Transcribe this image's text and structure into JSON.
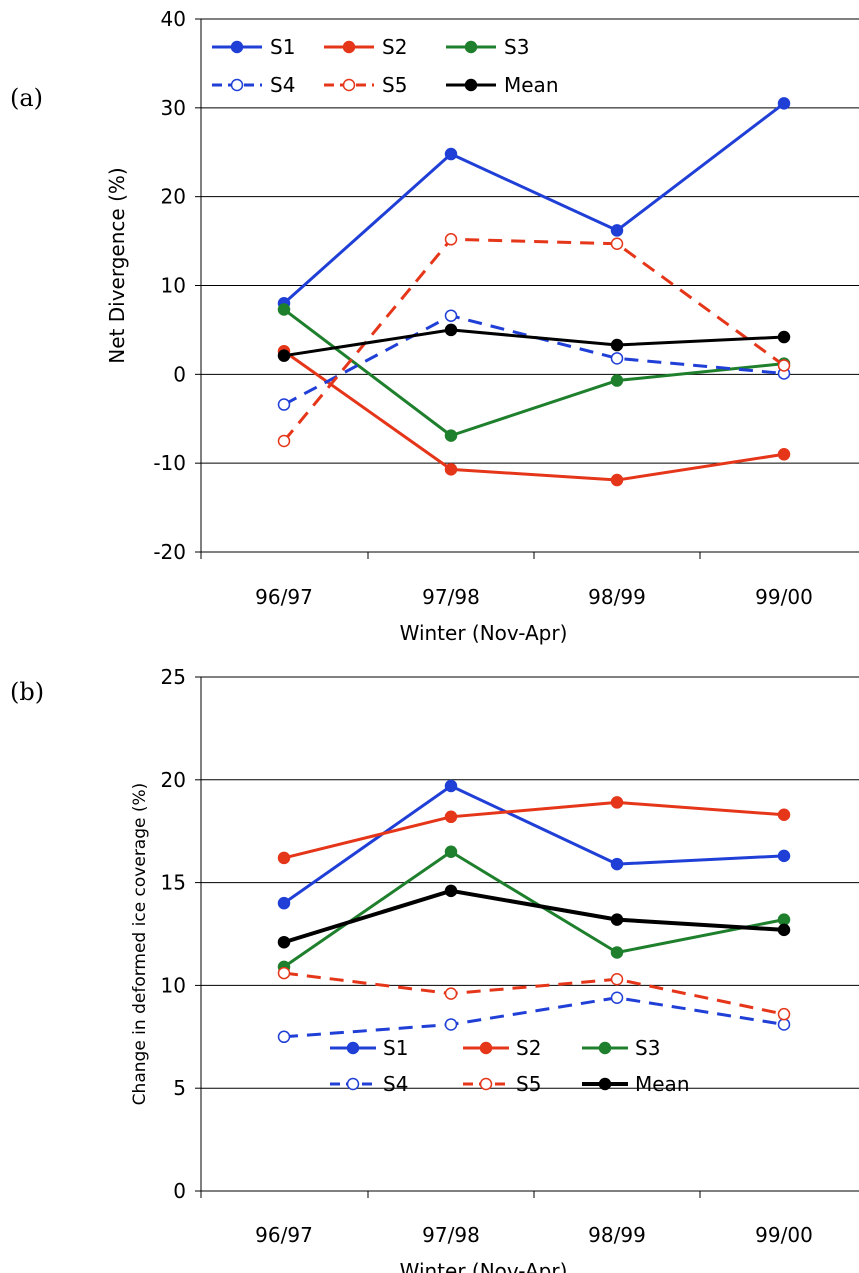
{
  "chart_data": [
    {
      "panel_label": "(a)",
      "type": "line",
      "categories": [
        "96/97",
        "97/98",
        "98/99",
        "99/00"
      ],
      "xlabel": "Winter (Nov-Apr)",
      "ylabel": "Net Divergence (%)",
      "ylim": [
        -20,
        40
      ],
      "yticks": [
        -20,
        -10,
        0,
        10,
        20,
        30,
        40
      ],
      "grid": true,
      "legend_position": "top",
      "series": [
        {
          "name": "S1",
          "values": [
            8.0,
            24.8,
            16.2,
            30.5
          ],
          "color": "#1f3fd6",
          "dashed": false,
          "open": false,
          "bold": false
        },
        {
          "name": "S2",
          "values": [
            2.6,
            -10.7,
            -11.9,
            -9.0
          ],
          "color": "#e5361a",
          "dashed": false,
          "open": false,
          "bold": false
        },
        {
          "name": "S3",
          "values": [
            7.3,
            -6.9,
            -0.7,
            1.2
          ],
          "color": "#1e7f2c",
          "dashed": false,
          "open": false,
          "bold": false
        },
        {
          "name": "S4",
          "values": [
            -3.4,
            6.6,
            1.8,
            0.1
          ],
          "color": "#1f3fd6",
          "dashed": true,
          "open": true,
          "bold": false
        },
        {
          "name": "S5",
          "values": [
            -7.5,
            15.2,
            14.7,
            1.0
          ],
          "color": "#e5361a",
          "dashed": true,
          "open": true,
          "bold": false
        },
        {
          "name": "Mean",
          "values": [
            2.1,
            5.0,
            3.3,
            4.2
          ],
          "color": "#000000",
          "dashed": false,
          "open": false,
          "bold": false
        }
      ]
    },
    {
      "panel_label": "(b)",
      "type": "line",
      "categories": [
        "96/97",
        "97/98",
        "98/99",
        "99/00"
      ],
      "xlabel": "Winter (Nov-Apr)",
      "ylabel": "Change in deformed ice coverage (%)",
      "ylim": [
        0,
        25
      ],
      "yticks": [
        0,
        5,
        10,
        15,
        20,
        25
      ],
      "grid": true,
      "legend_position": "bottom",
      "series": [
        {
          "name": "S1",
          "values": [
            14.0,
            19.7,
            15.9,
            16.3
          ],
          "color": "#1f3fd6",
          "dashed": false,
          "open": false,
          "bold": false
        },
        {
          "name": "S2",
          "values": [
            16.2,
            18.2,
            18.9,
            18.3
          ],
          "color": "#e5361a",
          "dashed": false,
          "open": false,
          "bold": false
        },
        {
          "name": "S3",
          "values": [
            10.9,
            16.5,
            11.6,
            13.2
          ],
          "color": "#1e7f2c",
          "dashed": false,
          "open": false,
          "bold": false
        },
        {
          "name": "S4",
          "values": [
            7.5,
            8.1,
            9.4,
            8.1
          ],
          "color": "#1f3fd6",
          "dashed": true,
          "open": true,
          "bold": false
        },
        {
          "name": "S5",
          "values": [
            10.6,
            9.6,
            10.3,
            8.6
          ],
          "color": "#e5361a",
          "dashed": true,
          "open": true,
          "bold": false
        },
        {
          "name": "Mean",
          "values": [
            12.1,
            14.6,
            13.2,
            12.7
          ],
          "color": "#000000",
          "dashed": false,
          "open": false,
          "bold": true
        }
      ]
    }
  ]
}
